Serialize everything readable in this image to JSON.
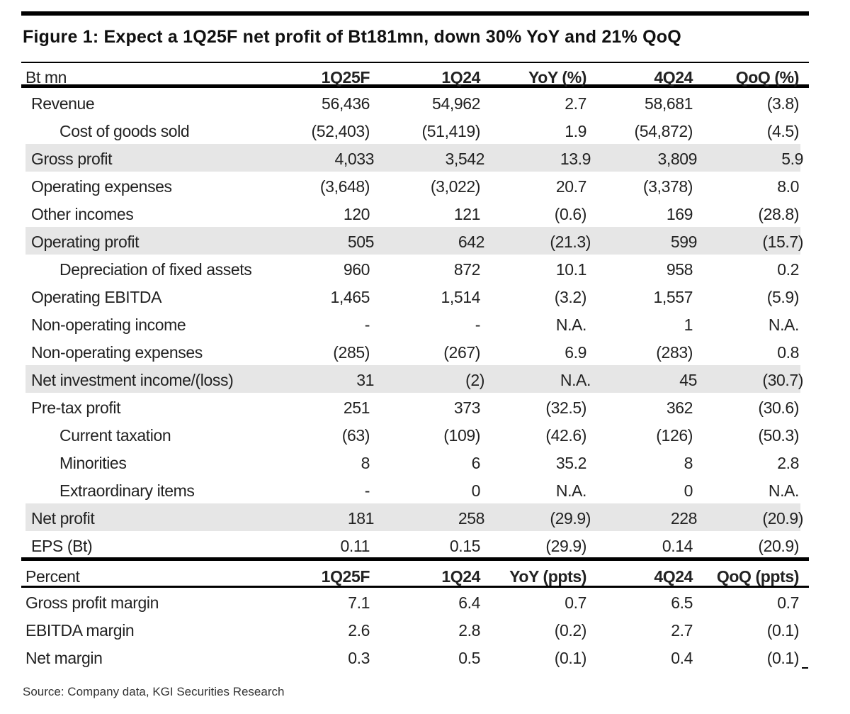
{
  "title": "Figure 1: Expect a 1Q25F net profit of Bt181mn, down 30% YoY and 21% QoQ",
  "header": [
    "Bt mn",
    "1Q25F",
    "1Q24",
    "YoY (%)",
    "4Q24",
    "QoQ (%)"
  ],
  "rows": [
    {
      "label": "Revenue",
      "values": [
        "56,436",
        "54,962",
        "2.7",
        "58,681",
        "(3.8)"
      ],
      "shade": false,
      "indent": false
    },
    {
      "label": "Cost of goods sold",
      "values": [
        "(52,403)",
        "(51,419)",
        "1.9",
        "(54,872)",
        "(4.5)"
      ],
      "shade": false,
      "indent": true
    },
    {
      "label": "Gross profit",
      "values": [
        "4,033",
        "3,542",
        "13.9",
        "3,809",
        "5.9"
      ],
      "shade": true,
      "indent": false
    },
    {
      "label": "Operating expenses",
      "values": [
        "(3,648)",
        "(3,022)",
        "20.7",
        "(3,378)",
        "8.0"
      ],
      "shade": false,
      "indent": false
    },
    {
      "label": "Other incomes",
      "values": [
        "120",
        "121",
        "(0.6)",
        "169",
        "(28.8)"
      ],
      "shade": false,
      "indent": false
    },
    {
      "label": "Operating profit",
      "values": [
        "505",
        "642",
        "(21.3)",
        "599",
        "(15.7)"
      ],
      "shade": true,
      "indent": false
    },
    {
      "label": "Depreciation of fixed assets",
      "values": [
        "960",
        "872",
        "10.1",
        "958",
        "0.2"
      ],
      "shade": false,
      "indent": true
    },
    {
      "label": "Operating EBITDA",
      "values": [
        "1,465",
        "1,514",
        "(3.2)",
        "1,557",
        "(5.9)"
      ],
      "shade": false,
      "indent": false
    },
    {
      "label": "Non-operating income",
      "values": [
        "-",
        "-",
        "N.A.",
        "1",
        "N.A."
      ],
      "shade": false,
      "indent": false
    },
    {
      "label": "Non-operating expenses",
      "values": [
        "(285)",
        "(267)",
        "6.9",
        "(283)",
        "0.8"
      ],
      "shade": false,
      "indent": false
    },
    {
      "label": "Net investment income/(loss)",
      "values": [
        "31",
        "(2)",
        "N.A.",
        "45",
        "(30.7)"
      ],
      "shade": true,
      "indent": false
    },
    {
      "label": "Pre-tax profit",
      "values": [
        "251",
        "373",
        "(32.5)",
        "362",
        "(30.6)"
      ],
      "shade": false,
      "indent": false
    },
    {
      "label": "Current taxation",
      "values": [
        "(63)",
        "(109)",
        "(42.6)",
        "(126)",
        "(50.3)"
      ],
      "shade": false,
      "indent": true
    },
    {
      "label": "Minorities",
      "values": [
        "8",
        "6",
        "35.2",
        "8",
        "2.8"
      ],
      "shade": false,
      "indent": true
    },
    {
      "label": "Extraordinary items",
      "values": [
        "-",
        "0",
        "N.A.",
        "0",
        "N.A."
      ],
      "shade": false,
      "indent": true
    },
    {
      "label": "Net profit",
      "values": [
        "181",
        "258",
        "(29.9)",
        "228",
        "(20.9)"
      ],
      "shade": true,
      "indent": false
    },
    {
      "label": "EPS (Bt)",
      "values": [
        "0.11",
        "0.15",
        "(29.9)",
        "0.14",
        "(20.9)"
      ],
      "shade": false,
      "indent": false
    }
  ],
  "percent_header": [
    "Percent",
    "1Q25F",
    "1Q24",
    "YoY (ppts)",
    "4Q24",
    "QoQ (ppts)"
  ],
  "percent_rows": [
    {
      "label": "Gross profit margin",
      "values": [
        "7.1",
        "6.4",
        "0.7",
        "6.5",
        "0.7"
      ]
    },
    {
      "label": "EBITDA margin",
      "values": [
        "2.6",
        "2.8",
        "(0.2)",
        "2.7",
        "(0.1)"
      ]
    },
    {
      "label": "Net margin",
      "values": [
        "0.3",
        "0.5",
        "(0.1)",
        "0.4",
        "(0.1)"
      ]
    }
  ],
  "source": "Source: Company data, KGI Securities Research"
}
